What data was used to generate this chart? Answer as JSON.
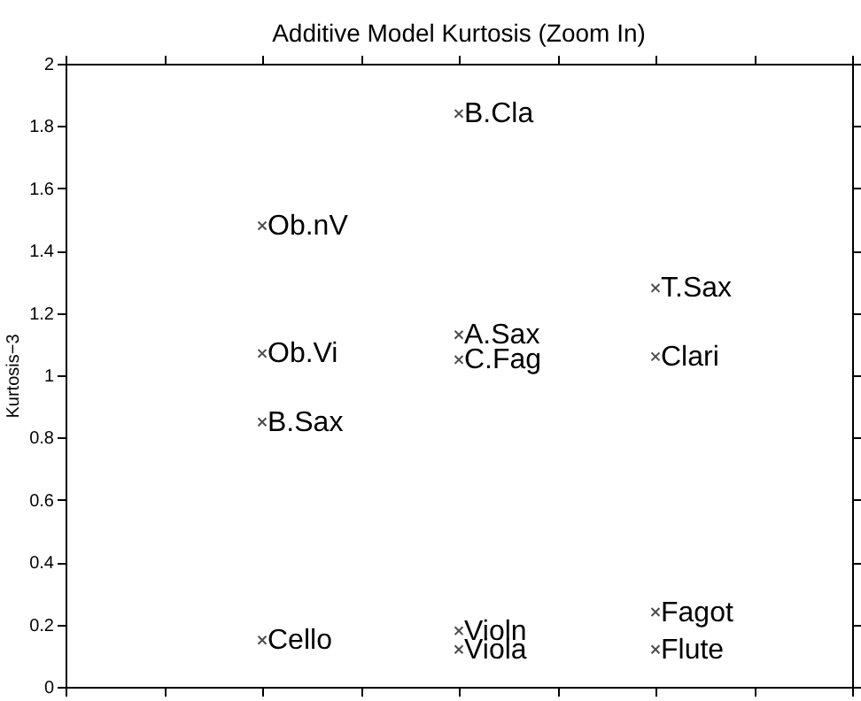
{
  "chart_data": {
    "type": "scatter",
    "title": "Additive Model Kurtosis (Zoom In)",
    "ylabel": "Kurtosis−3",
    "categories": [
      null,
      null,
      null,
      null,
      null,
      null,
      null
    ],
    "ylim": [
      0,
      2
    ],
    "yticks": [
      0,
      0.2,
      0.4,
      0.6,
      0.8,
      1,
      1.2,
      1.4,
      1.6,
      1.8,
      2
    ],
    "tick_labels": "y",
    "grid": false,
    "legend": false,
    "marker": "cross",
    "series": [
      {
        "name": "Ob.nV",
        "color": "#000000",
        "values": [
          null,
          1.48,
          null,
          null,
          null,
          null,
          null
        ]
      },
      {
        "name": "Ob.Vi",
        "color": "#000000",
        "values": [
          null,
          1.07,
          null,
          null,
          null,
          null,
          null
        ]
      },
      {
        "name": "B.Sax",
        "color": "#000000",
        "values": [
          null,
          0.85,
          null,
          null,
          null,
          null,
          null
        ]
      },
      {
        "name": "Cello",
        "color": "#000000",
        "values": [
          null,
          0.15,
          null,
          null,
          null,
          null,
          null
        ]
      },
      {
        "name": "B.Cla",
        "color": "#000000",
        "values": [
          null,
          null,
          null,
          1.84,
          null,
          null,
          null
        ]
      },
      {
        "name": "A.Sax",
        "color": "#000000",
        "values": [
          null,
          null,
          null,
          1.13,
          null,
          null,
          null
        ]
      },
      {
        "name": "C.Fag",
        "color": "#000000",
        "values": [
          null,
          null,
          null,
          1.05,
          null,
          null,
          null
        ]
      },
      {
        "name": "Violn",
        "color": "#000000",
        "values": [
          null,
          null,
          null,
          0.18,
          null,
          null,
          null
        ]
      },
      {
        "name": "Viola",
        "color": "#000000",
        "values": [
          null,
          null,
          null,
          0.12,
          null,
          null,
          null
        ]
      },
      {
        "name": "T.Sax",
        "color": "#000000",
        "values": [
          null,
          null,
          null,
          null,
          null,
          1.28,
          null
        ]
      },
      {
        "name": "Clari",
        "color": "#000000",
        "values": [
          null,
          null,
          null,
          null,
          null,
          1.06,
          null
        ]
      },
      {
        "name": "Fagot",
        "color": "#000000",
        "values": [
          null,
          null,
          null,
          null,
          null,
          0.24,
          null
        ]
      },
      {
        "name": "Flute",
        "color": "#000000",
        "values": [
          null,
          null,
          null,
          null,
          null,
          0.12,
          null
        ]
      }
    ]
  }
}
